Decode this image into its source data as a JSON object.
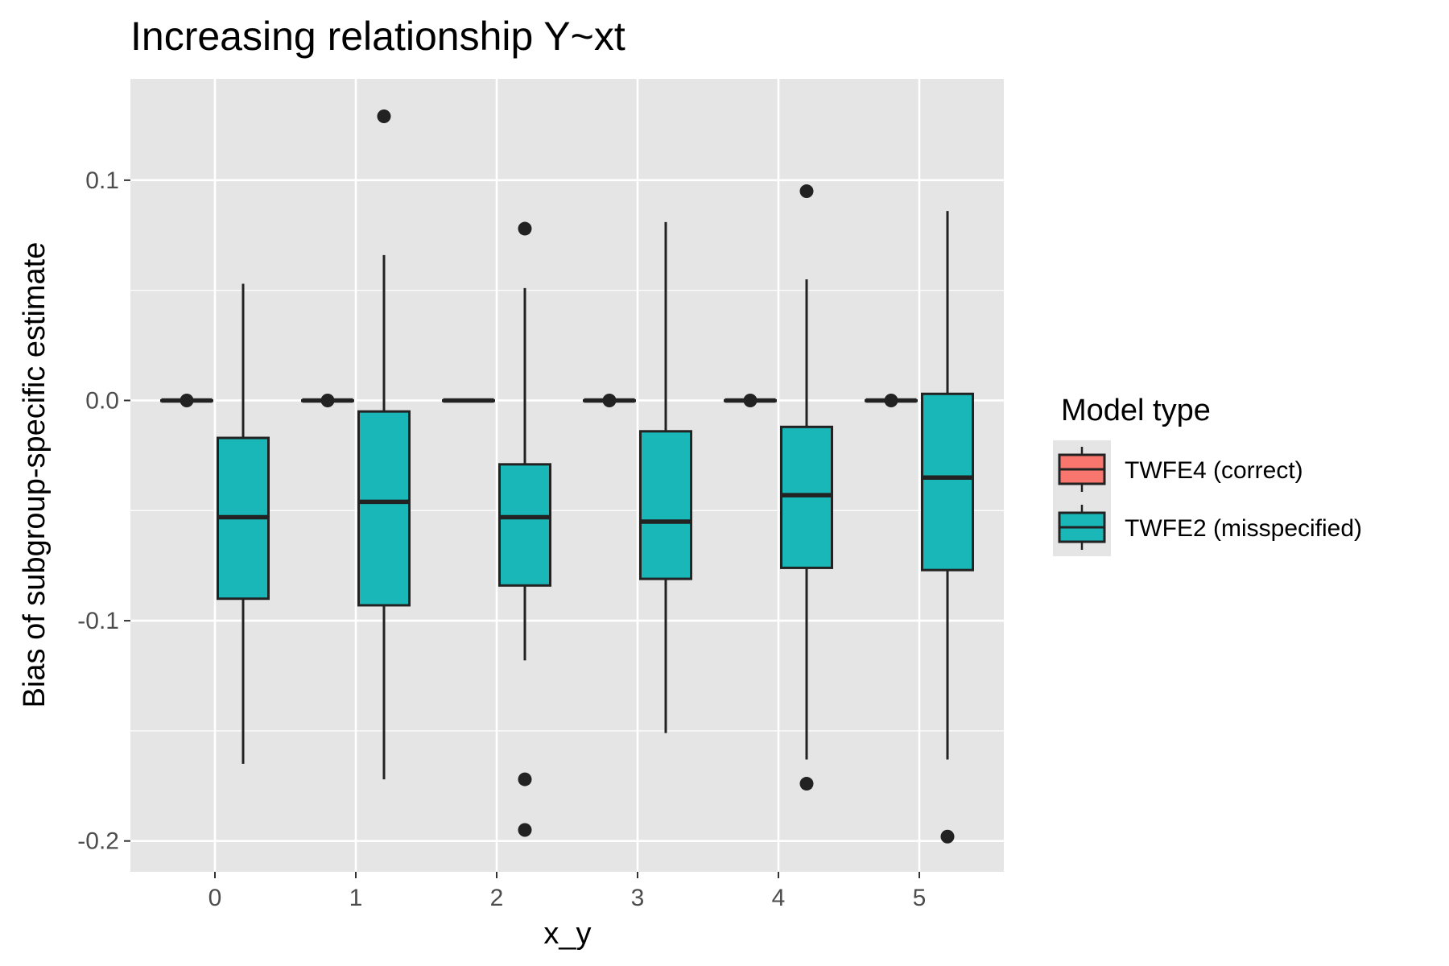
{
  "chart_data": {
    "type": "boxplot",
    "title": "Increasing relationship Y~xt",
    "xlabel": "x_y",
    "ylabel": "Bias of subgroup-specific estimate",
    "categories": [
      "0",
      "1",
      "2",
      "3",
      "4",
      "5"
    ],
    "ylim": [
      -0.214,
      0.146
    ],
    "y_ticks": [
      -0.2,
      -0.1,
      0.0,
      0.1
    ],
    "y_tick_labels": [
      "-0.2",
      "-0.1",
      "0.0",
      "0.1"
    ],
    "grid": true,
    "legend_position": "right",
    "legend": {
      "title": "Model type",
      "entries": [
        {
          "label": "TWFE4 (correct)",
          "color": "#f8766d"
        },
        {
          "label": "TWFE2 (misspecified)",
          "color": "#19b7b7"
        }
      ]
    },
    "series": [
      {
        "name": "TWFE4 (correct)",
        "color": "#f8766d",
        "boxes": [
          {
            "x": "0",
            "min": 0.0,
            "q1": 0.0,
            "median": 0.0,
            "q3": 0.0,
            "max": 0.0,
            "outliers": [
              0.0
            ]
          },
          {
            "x": "1",
            "min": 0.0,
            "q1": 0.0,
            "median": 0.0,
            "q3": 0.0,
            "max": 0.0,
            "outliers": [
              0.0
            ]
          },
          {
            "x": "2",
            "min": 0.0,
            "q1": 0.0,
            "median": 0.0,
            "q3": 0.0,
            "max": 0.0,
            "outliers": []
          },
          {
            "x": "3",
            "min": 0.0,
            "q1": 0.0,
            "median": 0.0,
            "q3": 0.0,
            "max": 0.0,
            "outliers": [
              0.0
            ]
          },
          {
            "x": "4",
            "min": 0.0,
            "q1": 0.0,
            "median": 0.0,
            "q3": 0.0,
            "max": 0.0,
            "outliers": [
              0.0
            ]
          },
          {
            "x": "5",
            "min": 0.0,
            "q1": 0.0,
            "median": 0.0,
            "q3": 0.0,
            "max": 0.0,
            "outliers": [
              0.0
            ]
          }
        ]
      },
      {
        "name": "TWFE2 (misspecified)",
        "color": "#19b7b7",
        "boxes": [
          {
            "x": "0",
            "min": -0.165,
            "q1": -0.09,
            "median": -0.053,
            "q3": -0.017,
            "max": 0.053,
            "outliers": []
          },
          {
            "x": "1",
            "min": -0.172,
            "q1": -0.093,
            "median": -0.046,
            "q3": -0.005,
            "max": 0.066,
            "outliers": [
              0.129
            ]
          },
          {
            "x": "2",
            "min": -0.118,
            "q1": -0.084,
            "median": -0.053,
            "q3": -0.029,
            "max": 0.051,
            "outliers": [
              0.078,
              -0.172,
              -0.195
            ]
          },
          {
            "x": "3",
            "min": -0.151,
            "q1": -0.081,
            "median": -0.055,
            "q3": -0.014,
            "max": 0.081,
            "outliers": []
          },
          {
            "x": "4",
            "min": -0.163,
            "q1": -0.076,
            "median": -0.043,
            "q3": -0.012,
            "max": 0.055,
            "outliers": [
              0.095,
              -0.174
            ]
          },
          {
            "x": "5",
            "min": -0.163,
            "q1": -0.077,
            "median": -0.035,
            "q3": 0.003,
            "max": 0.086,
            "outliers": [
              -0.198
            ]
          }
        ]
      }
    ]
  }
}
